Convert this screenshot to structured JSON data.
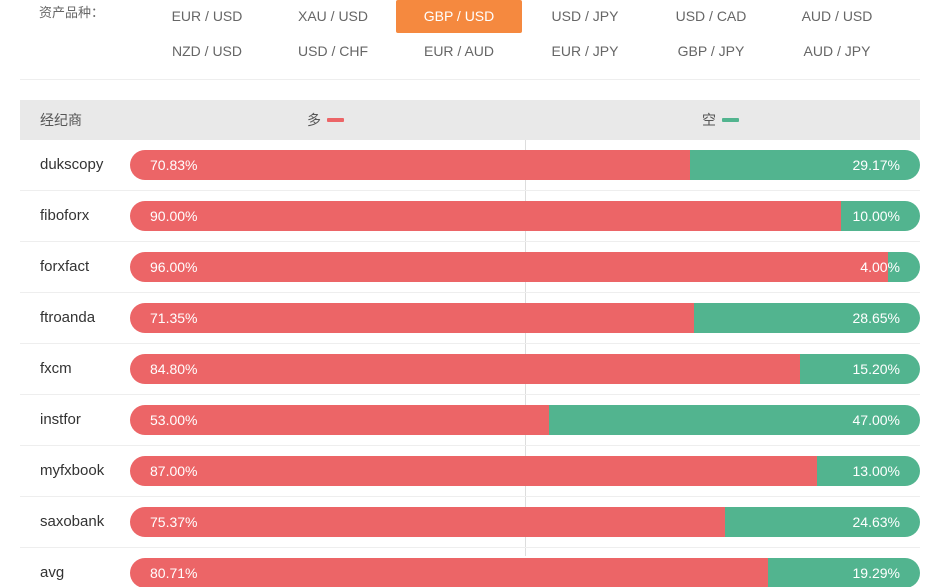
{
  "asset_selector": {
    "label": "资产品种：",
    "active": "GBP / USD",
    "pairs": [
      [
        "EUR / USD",
        "XAU / USD",
        "GBP / USD",
        "USD / JPY",
        "USD / CAD",
        "AUD / USD"
      ],
      [
        "NZD / USD",
        "USD / CHF",
        "EUR / AUD",
        "EUR / JPY",
        "GBP / JPY",
        "AUD / JPY"
      ]
    ]
  },
  "table": {
    "header": {
      "broker": "经纪商",
      "long_label": "多",
      "short_label": "空"
    },
    "colors": {
      "long": "#ec6567",
      "short": "#52b48f",
      "active_pair": "#f5893f"
    },
    "rows": [
      {
        "broker": "dukscopy",
        "long": "70.83%",
        "short": "29.17%",
        "long_value": 70.83
      },
      {
        "broker": "fiboforx",
        "long": "90.00%",
        "short": "10.00%",
        "long_value": 90.0
      },
      {
        "broker": "forxfact",
        "long": "96.00%",
        "short": "4.00%",
        "long_value": 96.0
      },
      {
        "broker": "ftroanda",
        "long": "71.35%",
        "short": "28.65%",
        "long_value": 71.35
      },
      {
        "broker": "fxcm",
        "long": "84.80%",
        "short": "15.20%",
        "long_value": 84.8
      },
      {
        "broker": "instfor",
        "long": "53.00%",
        "short": "47.00%",
        "long_value": 53.0
      },
      {
        "broker": "myfxbook",
        "long": "87.00%",
        "short": "13.00%",
        "long_value": 87.0
      },
      {
        "broker": "saxobank",
        "long": "75.37%",
        "short": "24.63%",
        "long_value": 75.37
      },
      {
        "broker": "avg",
        "long": "80.71%",
        "short": "19.29%",
        "long_value": 80.71
      }
    ]
  }
}
